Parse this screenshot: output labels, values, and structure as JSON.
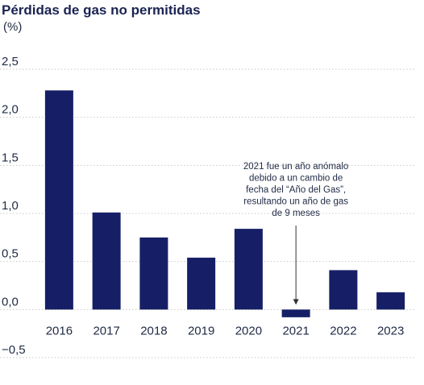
{
  "title": "Pérdidas de gas no permitidas",
  "unit": "(%)",
  "colors": {
    "bar": "#161f66",
    "grid": "#c9c9c9",
    "text": "#1f2a44"
  },
  "chart_data": {
    "type": "bar",
    "categories": [
      "2016",
      "2017",
      "2018",
      "2019",
      "2020",
      "2021",
      "2022",
      "2023"
    ],
    "values": [
      2.28,
      1.01,
      0.75,
      0.54,
      0.84,
      -0.08,
      0.41,
      0.18
    ],
    "title": "Pérdidas de gas no permitidas",
    "ylabel": "(%)",
    "ylim": [
      -0.5,
      2.5
    ],
    "yticks": [
      "−0,5",
      "0,0",
      "0,5",
      "1,0",
      "1,5",
      "2,0",
      "2,5"
    ],
    "grid": "horizontal",
    "annotation": {
      "category": "2021",
      "lines": [
        "2021 fue un año anómalo",
        "debido a un cambio de",
        "fecha del “Año del Gas”,",
        "resultando un año de gas",
        "de 9 meses"
      ]
    }
  }
}
